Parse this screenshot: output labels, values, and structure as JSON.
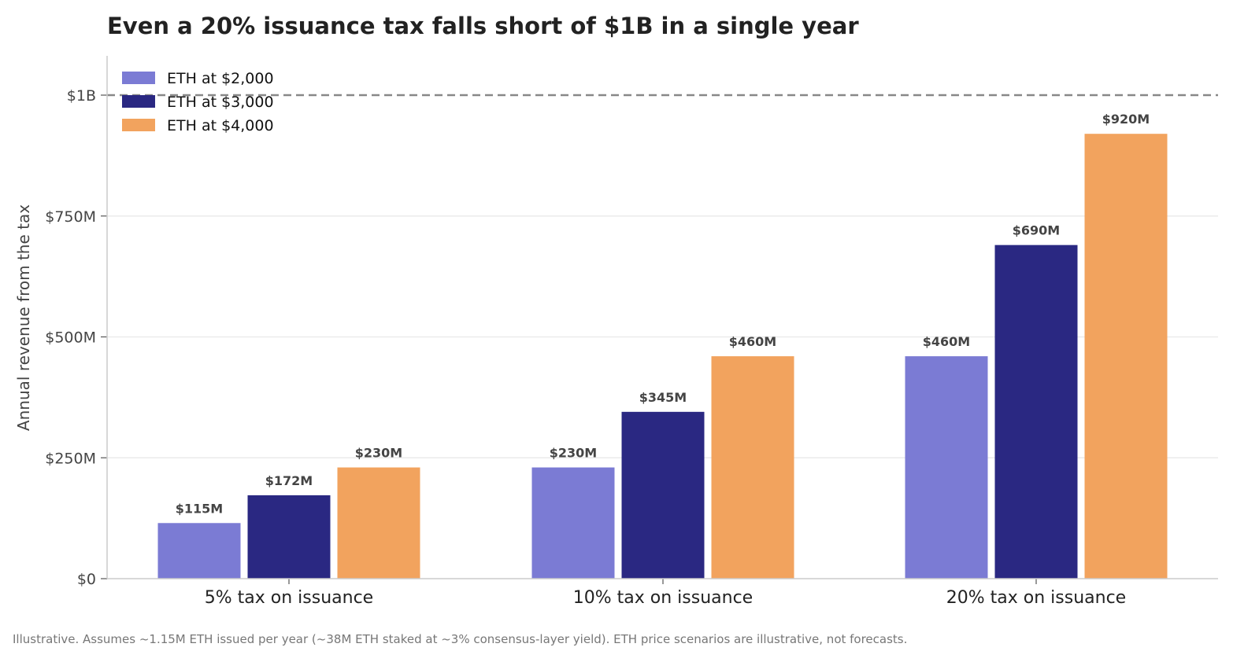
{
  "chart_data": {
    "type": "bar",
    "title": "Even a 20% issuance tax falls short of $1B in a single year",
    "xlabel": "",
    "ylabel": "Annual revenue from the tax",
    "categories": [
      "5% tax on issuance",
      "10% tax on issuance",
      "20% tax on issuance"
    ],
    "series": [
      {
        "name": "ETH at $2,000",
        "color": "#7b7bd4",
        "values": [
          115,
          230,
          460
        ],
        "labels": [
          "$115M",
          "$230M",
          "$460M"
        ]
      },
      {
        "name": "ETH at $3,000",
        "color": "#2a2882",
        "values": [
          172.5,
          345,
          690
        ],
        "labels": [
          "$172M",
          "$345M",
          "$690M"
        ]
      },
      {
        "name": "ETH at $4,000",
        "color": "#f2a35e",
        "values": [
          230,
          460,
          920
        ],
        "labels": [
          "$230M",
          "$460M",
          "$920M"
        ]
      }
    ],
    "unit": "millions USD",
    "ylim": [
      0,
      1080
    ],
    "yticks": [
      {
        "value": 0,
        "label": "$0"
      },
      {
        "value": 250,
        "label": "$250M"
      },
      {
        "value": 500,
        "label": "$500M"
      },
      {
        "value": 750,
        "label": "$750M"
      },
      {
        "value": 1000,
        "label": "$1B"
      }
    ],
    "reference_line": {
      "value": 1000,
      "style": "dashed",
      "color": "#888888"
    },
    "grid": "horizontal",
    "legend_position": "top-left",
    "footnote": "Illustrative. Assumes ~1.15M ETH issued per year (~38M ETH staked at ~3% consensus-layer yield). ETH price scenarios are illustrative, not forecasts."
  }
}
